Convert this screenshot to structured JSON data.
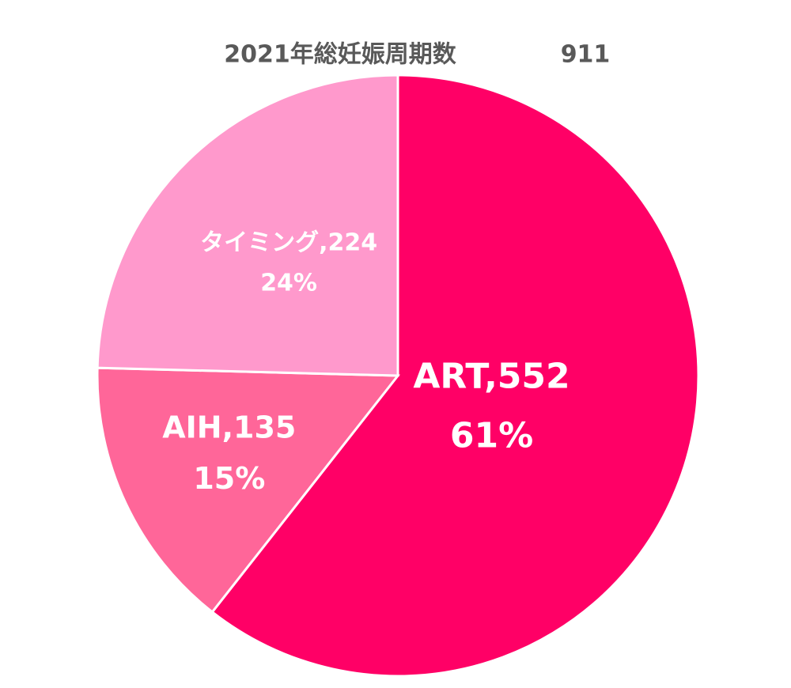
{
  "chart_data": {
    "type": "pie",
    "title": "2021年総妊娠周期数",
    "total": 911,
    "values": [
      552,
      135,
      224
    ],
    "value_labels": [
      "ART,552",
      "AIH,135",
      "タイミング,224"
    ],
    "percentages": [
      61,
      15,
      24
    ],
    "percent_labels": [
      "61%",
      "15%",
      "24%"
    ],
    "colors": [
      "#ff0066",
      "#ff6699",
      "#ff99cc"
    ]
  }
}
